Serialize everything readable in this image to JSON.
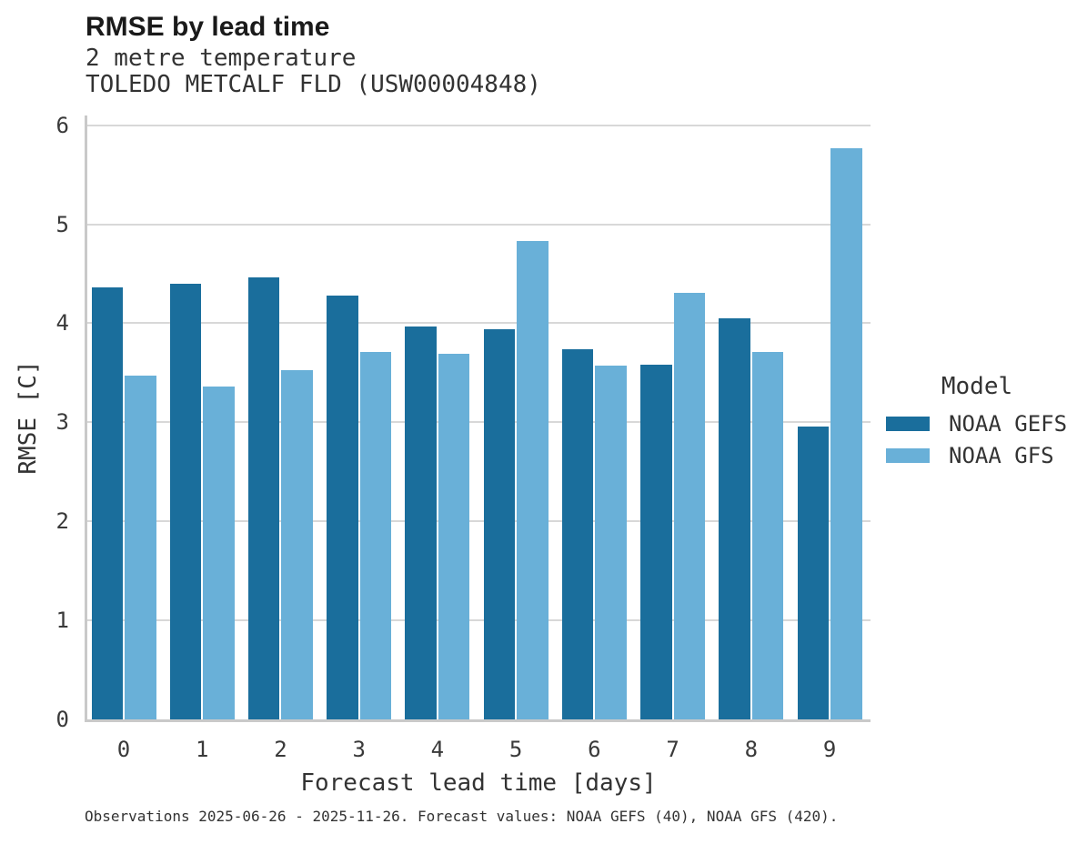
{
  "header": {
    "title": "RMSE by lead time",
    "subtitle": "2 metre temperature",
    "station": "TOLEDO METCALF FLD (USW00004848)"
  },
  "chart_data": {
    "type": "bar",
    "title": "RMSE by lead time",
    "subtitle": "2 metre temperature",
    "station": "TOLEDO METCALF FLD (USW00004848)",
    "categories": [
      "0",
      "1",
      "2",
      "3",
      "4",
      "5",
      "6",
      "7",
      "8",
      "9"
    ],
    "series": [
      {
        "name": "NOAA GEFS",
        "color": "#1a6e9c",
        "values": [
          4.36,
          4.4,
          4.46,
          4.28,
          3.97,
          3.94,
          3.74,
          3.58,
          4.05,
          2.96
        ]
      },
      {
        "name": "NOAA GFS",
        "color": "#69b0d8",
        "values": [
          3.47,
          3.36,
          3.53,
          3.71,
          3.69,
          4.83,
          3.57,
          4.31,
          3.71,
          5.77
        ]
      }
    ],
    "xlabel": "Forecast lead time [days]",
    "ylabel": "RMSE [C]",
    "ylim": [
      0,
      6.1
    ],
    "yticks": [
      0,
      1,
      2,
      3,
      4,
      5,
      6
    ],
    "grid": true,
    "legend_title": "Model",
    "legend_position": "right-center"
  },
  "legend": {
    "title": "Model",
    "entries": [
      {
        "label": "NOAA GEFS",
        "color": "#1a6e9c"
      },
      {
        "label": "NOAA GFS",
        "color": "#69b0d8"
      }
    ]
  },
  "footer": {
    "caption": "Observations 2025-06-26 - 2025-11-26. Forecast values: NOAA GEFS (40), NOAA GFS (420)."
  },
  "colors": {
    "gefs_dark_blue": "#1a6e9c",
    "gfs_light_blue": "#69b0d8",
    "gridline_gray": "#d8d8d8",
    "axis_gray": "#c9c9c9"
  }
}
